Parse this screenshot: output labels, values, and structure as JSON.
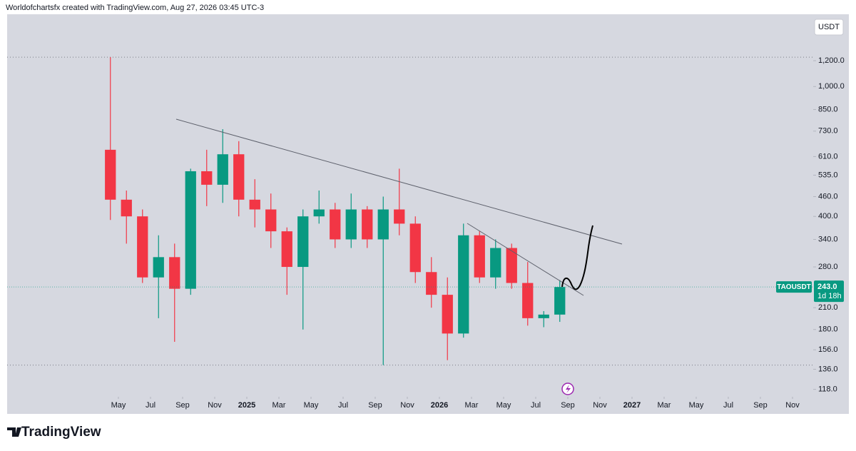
{
  "header": {
    "text": "Worldofchartsfx created with TradingView.com, Aug 27, 2026 03:45 UTC-3"
  },
  "footer": {
    "logo": "TradingView"
  },
  "chart_data": {
    "type": "candlestick",
    "symbol": "TAOUSDT",
    "currency": "USDT",
    "countdown": "1d 18h",
    "last_value_label": "243.0",
    "x": [
      "2024-04",
      "2024-05",
      "2024-06",
      "2024-07",
      "2024-08",
      "2024-09",
      "2024-10",
      "2024-11",
      "2024-12",
      "2025-01",
      "2025-02",
      "2025-03",
      "2025-04",
      "2025-05",
      "2025-06",
      "2025-07",
      "2025-08",
      "2025-09",
      "2025-10",
      "2025-11",
      "2025-12",
      "2026-01",
      "2026-02",
      "2026-03",
      "2026-04",
      "2026-05",
      "2026-06",
      "2026-07",
      "2026-08"
    ],
    "open": [
      640,
      450,
      400,
      260,
      300,
      240,
      550,
      500,
      620,
      450,
      420,
      360,
      280,
      400,
      420,
      340,
      420,
      340,
      420,
      380,
      270,
      230,
      175,
      350,
      260,
      320,
      250,
      195,
      200
    ],
    "high": [
      1230,
      480,
      420,
      350,
      330,
      560,
      640,
      740,
      680,
      520,
      470,
      370,
      420,
      480,
      440,
      470,
      430,
      460,
      560,
      400,
      300,
      260,
      380,
      360,
      340,
      330,
      290,
      205,
      255
    ],
    "low": [
      390,
      330,
      250,
      195,
      165,
      230,
      430,
      440,
      400,
      370,
      320,
      230,
      180,
      380,
      320,
      320,
      320,
      140,
      350,
      250,
      210,
      145,
      170,
      250,
      240,
      240,
      185,
      183,
      190
    ],
    "close": [
      450,
      400,
      260,
      300,
      240,
      550,
      500,
      620,
      450,
      420,
      360,
      280,
      400,
      420,
      340,
      420,
      340,
      420,
      380,
      270,
      230,
      175,
      350,
      260,
      320,
      250,
      195,
      200,
      243
    ],
    "up_color": "#089981",
    "down_color": "#f23645",
    "log_scale": true,
    "ylim": [
      112,
      1665
    ],
    "yticks": [
      {
        "value": 118,
        "label": "118.0"
      },
      {
        "value": 136,
        "label": "136.0"
      },
      {
        "value": 156,
        "label": "156.0"
      },
      {
        "value": 180,
        "label": "180.0"
      },
      {
        "value": 210,
        "label": "210.0"
      },
      {
        "value": 280,
        "label": "280.0"
      },
      {
        "value": 340,
        "label": "340.0"
      },
      {
        "value": 400,
        "label": "400.0"
      },
      {
        "value": 460,
        "label": "460.0"
      },
      {
        "value": 535,
        "label": "535.0"
      },
      {
        "value": 610,
        "label": "610.0"
      },
      {
        "value": 730,
        "label": "730.0"
      },
      {
        "value": 850,
        "label": "850.0"
      },
      {
        "value": 1000,
        "label": "1,000.0"
      },
      {
        "value": 1200,
        "label": "1,200.0"
      }
    ],
    "xlim": [
      "2023-10",
      "2027-12"
    ],
    "xticks": [
      {
        "value": "2024-05",
        "label": "May"
      },
      {
        "value": "2024-07",
        "label": "Jul"
      },
      {
        "value": "2024-09",
        "label": "Sep"
      },
      {
        "value": "2024-11",
        "label": "Nov"
      },
      {
        "value": "2025-01",
        "label": "2025"
      },
      {
        "value": "2025-03",
        "label": "Mar"
      },
      {
        "value": "2025-05",
        "label": "May"
      },
      {
        "value": "2025-07",
        "label": "Jul"
      },
      {
        "value": "2025-09",
        "label": "Sep"
      },
      {
        "value": "2025-11",
        "label": "Nov"
      },
      {
        "value": "2026-01",
        "label": "2026"
      },
      {
        "value": "2026-03",
        "label": "Mar"
      },
      {
        "value": "2026-05",
        "label": "May"
      },
      {
        "value": "2026-07",
        "label": "Jul"
      },
      {
        "value": "2026-09",
        "label": "Sep"
      },
      {
        "value": "2026-11",
        "label": "Nov"
      },
      {
        "value": "2027-01",
        "label": "2027"
      },
      {
        "value": "2027-03",
        "label": "Mar"
      },
      {
        "value": "2027-05",
        "label": "May"
      },
      {
        "value": "2027-07",
        "label": "Jul"
      },
      {
        "value": "2027-09",
        "label": "Sep"
      },
      {
        "value": "2027-11",
        "label": "Nov"
      }
    ]
  }
}
